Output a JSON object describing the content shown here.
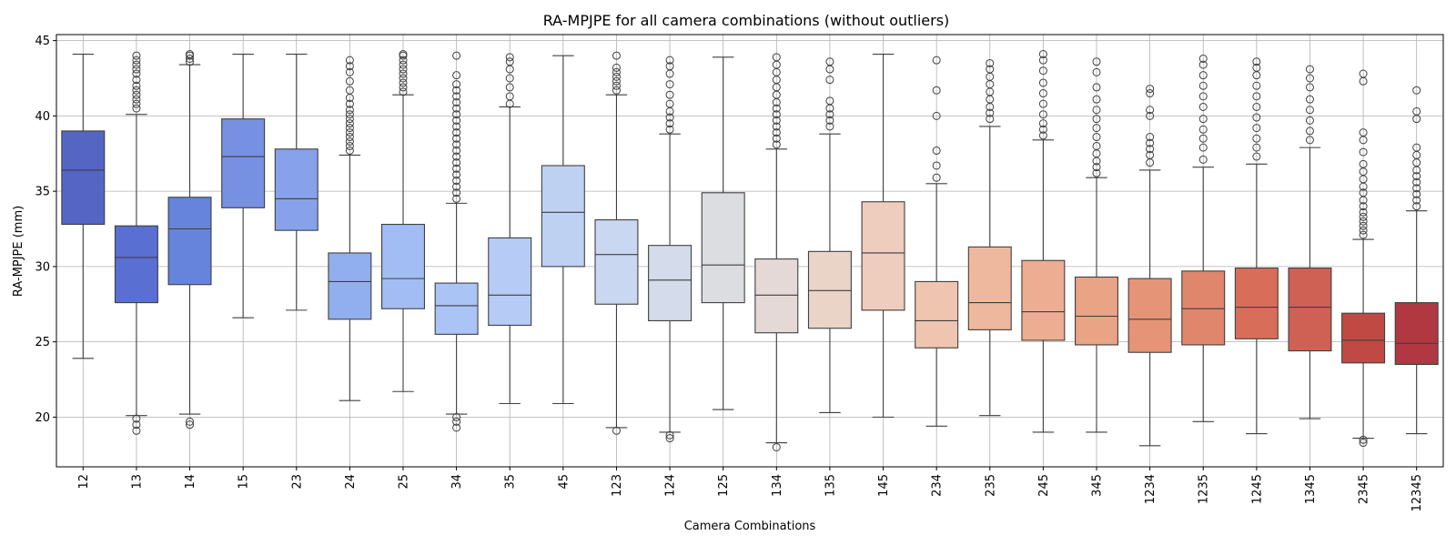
{
  "chart_data": {
    "type": "boxplot",
    "title": "RA-MPJPE for all camera combinations (without outliers)",
    "xlabel": "Camera Combinations",
    "ylabel": "RA-MPJPE (mm)",
    "ylim": [
      16.7,
      45.4
    ],
    "yticks": [
      20,
      25,
      30,
      35,
      40,
      45
    ],
    "grid": true,
    "palette": "coolwarm",
    "categories": [
      "12",
      "13",
      "14",
      "15",
      "23",
      "24",
      "25",
      "34",
      "35",
      "45",
      "123",
      "124",
      "125",
      "134",
      "135",
      "145",
      "234",
      "235",
      "245",
      "345",
      "1234",
      "1235",
      "1245",
      "1345",
      "2345",
      "12345"
    ],
    "colors": [
      "#5465c4",
      "#5a6fd2",
      "#6784dc",
      "#7690e2",
      "#87a2eb",
      "#91aeef",
      "#a2bdf4",
      "#aac4f6",
      "#b6cbf6",
      "#bed1f3",
      "#cad7f0",
      "#d4dbea",
      "#dcdde1",
      "#e4d9d6",
      "#ead4c8",
      "#eecdbf",
      "#f0c5b0",
      "#eeb89f",
      "#ecad92",
      "#e9a385",
      "#e59478",
      "#e0866c",
      "#d86e5a",
      "#cf6154",
      "#c04a43",
      "#b13840"
    ],
    "boxes": [
      {
        "label": "12",
        "whislo": 23.9,
        "q1": 32.8,
        "med": 36.4,
        "q3": 39.0,
        "whishi": 44.1,
        "fliers": []
      },
      {
        "label": "13",
        "whislo": 20.1,
        "q1": 27.6,
        "med": 30.6,
        "q3": 32.7,
        "whishi": 40.1,
        "fliers": [
          40.5,
          40.8,
          41.1,
          41.4,
          41.7,
          42.0,
          42.4,
          42.8,
          43.1,
          43.4,
          43.7,
          44.0,
          19.9,
          19.5,
          19.1
        ]
      },
      {
        "label": "14",
        "whislo": 20.2,
        "q1": 28.8,
        "med": 32.5,
        "q3": 34.6,
        "whishi": 43.4,
        "fliers": [
          43.6,
          43.8,
          44.0,
          44.1,
          19.7,
          19.5
        ]
      },
      {
        "label": "15",
        "whislo": 26.6,
        "q1": 33.9,
        "med": 37.3,
        "q3": 39.8,
        "whishi": 44.1,
        "fliers": []
      },
      {
        "label": "23",
        "whislo": 27.1,
        "q1": 32.4,
        "med": 34.5,
        "q3": 37.8,
        "whishi": 44.1,
        "fliers": []
      },
      {
        "label": "24",
        "whislo": 21.1,
        "q1": 26.5,
        "med": 29.0,
        "q3": 30.9,
        "whishi": 37.4,
        "fliers": [
          37.7,
          38.0,
          38.3,
          38.6,
          38.9,
          39.2,
          39.5,
          39.8,
          40.1,
          40.4,
          40.8,
          41.2,
          41.7,
          42.3,
          42.9,
          43.3,
          43.7
        ]
      },
      {
        "label": "25",
        "whislo": 21.7,
        "q1": 27.2,
        "med": 29.2,
        "q3": 32.8,
        "whishi": 41.4,
        "fliers": [
          41.6,
          41.9,
          42.2,
          42.5,
          42.8,
          43.1,
          43.4,
          43.7,
          44.0,
          44.1
        ]
      },
      {
        "label": "34",
        "whislo": 20.2,
        "q1": 25.5,
        "med": 27.4,
        "q3": 28.9,
        "whishi": 34.2,
        "fliers": [
          34.5,
          34.9,
          35.3,
          35.7,
          36.1,
          36.5,
          36.9,
          37.3,
          37.7,
          38.1,
          38.5,
          38.9,
          39.3,
          39.7,
          40.1,
          40.5,
          40.9,
          41.3,
          41.7,
          42.1,
          42.7,
          44.0,
          20.0,
          19.7,
          19.3
        ]
      },
      {
        "label": "35",
        "whislo": 20.9,
        "q1": 26.1,
        "med": 28.1,
        "q3": 31.9,
        "whishi": 40.6,
        "fliers": [
          40.8,
          41.3,
          41.9,
          42.5,
          43.1,
          43.6,
          43.9
        ]
      },
      {
        "label": "45",
        "whislo": 20.9,
        "q1": 30.0,
        "med": 33.6,
        "q3": 36.7,
        "whishi": 44.0,
        "fliers": []
      },
      {
        "label": "123",
        "whislo": 19.3,
        "q1": 27.5,
        "med": 30.8,
        "q3": 33.1,
        "whishi": 41.4,
        "fliers": [
          41.7,
          42.0,
          42.3,
          42.6,
          42.9,
          43.2,
          44.0,
          19.1
        ]
      },
      {
        "label": "124",
        "whislo": 19.0,
        "q1": 26.4,
        "med": 29.1,
        "q3": 31.4,
        "whishi": 38.8,
        "fliers": [
          39.1,
          39.5,
          39.9,
          40.3,
          40.8,
          41.4,
          42.1,
          42.8,
          43.3,
          43.7,
          18.8,
          18.6
        ]
      },
      {
        "label": "125",
        "whislo": 20.5,
        "q1": 27.6,
        "med": 30.1,
        "q3": 34.9,
        "whishi": 43.9,
        "fliers": []
      },
      {
        "label": "134",
        "whislo": 18.3,
        "q1": 25.6,
        "med": 28.1,
        "q3": 30.5,
        "whishi": 37.8,
        "fliers": [
          38.1,
          38.5,
          38.9,
          39.3,
          39.7,
          40.1,
          40.5,
          40.9,
          41.4,
          41.9,
          42.4,
          42.9,
          43.4,
          43.9,
          18.0
        ]
      },
      {
        "label": "135",
        "whislo": 20.3,
        "q1": 25.9,
        "med": 28.4,
        "q3": 31.0,
        "whishi": 38.8,
        "fliers": [
          39.3,
          39.7,
          40.1,
          40.5,
          41.0,
          42.4,
          43.1,
          43.6
        ]
      },
      {
        "label": "145",
        "whislo": 20.0,
        "q1": 27.1,
        "med": 30.9,
        "q3": 34.3,
        "whishi": 44.1,
        "fliers": []
      },
      {
        "label": "234",
        "whislo": 19.4,
        "q1": 24.6,
        "med": 26.4,
        "q3": 29.0,
        "whishi": 35.5,
        "fliers": [
          35.9,
          36.7,
          37.7,
          40.0,
          41.7,
          43.7
        ]
      },
      {
        "label": "235",
        "whislo": 20.1,
        "q1": 25.8,
        "med": 27.6,
        "q3": 31.3,
        "whishi": 39.3,
        "fliers": [
          39.8,
          40.2,
          40.6,
          41.1,
          41.6,
          42.1,
          42.6,
          43.1,
          43.5
        ]
      },
      {
        "label": "245",
        "whislo": 19.0,
        "q1": 25.1,
        "med": 27.0,
        "q3": 30.4,
        "whishi": 38.4,
        "fliers": [
          38.7,
          39.1,
          39.5,
          40.1,
          40.8,
          41.5,
          42.2,
          43.0,
          43.7,
          44.1
        ]
      },
      {
        "label": "345",
        "whislo": 19.0,
        "q1": 24.8,
        "med": 26.7,
        "q3": 29.3,
        "whishi": 35.9,
        "fliers": [
          36.2,
          36.6,
          37.0,
          37.5,
          38.0,
          38.6,
          39.2,
          39.8,
          40.4,
          41.1,
          41.9,
          42.9,
          43.6
        ]
      },
      {
        "label": "1234",
        "whislo": 18.1,
        "q1": 24.3,
        "med": 26.5,
        "q3": 29.2,
        "whishi": 36.4,
        "fliers": [
          36.9,
          37.4,
          37.8,
          38.2,
          38.6,
          40.0,
          40.4,
          41.5,
          41.8
        ]
      },
      {
        "label": "1235",
        "whislo": 19.7,
        "q1": 24.8,
        "med": 27.2,
        "q3": 29.7,
        "whishi": 36.6,
        "fliers": [
          37.1,
          37.9,
          38.5,
          39.1,
          39.8,
          40.6,
          41.3,
          42.0,
          42.7,
          43.4,
          43.8
        ]
      },
      {
        "label": "1245",
        "whislo": 18.9,
        "q1": 25.2,
        "med": 27.3,
        "q3": 29.9,
        "whishi": 36.8,
        "fliers": [
          37.3,
          37.9,
          38.5,
          39.2,
          39.9,
          40.6,
          41.3,
          42.0,
          42.7,
          43.2,
          43.6
        ]
      },
      {
        "label": "1345",
        "whislo": 19.9,
        "q1": 24.4,
        "med": 27.3,
        "q3": 29.9,
        "whishi": 37.9,
        "fliers": [
          38.4,
          39.0,
          39.7,
          40.4,
          41.1,
          41.9,
          42.5,
          43.1
        ]
      },
      {
        "label": "2345",
        "whislo": 18.6,
        "q1": 23.6,
        "med": 25.1,
        "q3": 26.9,
        "whishi": 31.8,
        "fliers": [
          32.1,
          32.4,
          32.7,
          33.0,
          33.3,
          33.6,
          34.0,
          34.4,
          34.9,
          35.3,
          35.8,
          36.3,
          36.8,
          37.6,
          38.4,
          38.9,
          42.3,
          42.8,
          18.5,
          18.3
        ]
      },
      {
        "label": "12345",
        "whislo": 18.9,
        "q1": 23.5,
        "med": 24.9,
        "q3": 27.6,
        "whishi": 33.7,
        "fliers": [
          34.0,
          34.4,
          34.8,
          35.2,
          35.6,
          36.0,
          36.4,
          36.9,
          37.4,
          37.9,
          39.8,
          40.3,
          41.7
        ]
      }
    ]
  }
}
